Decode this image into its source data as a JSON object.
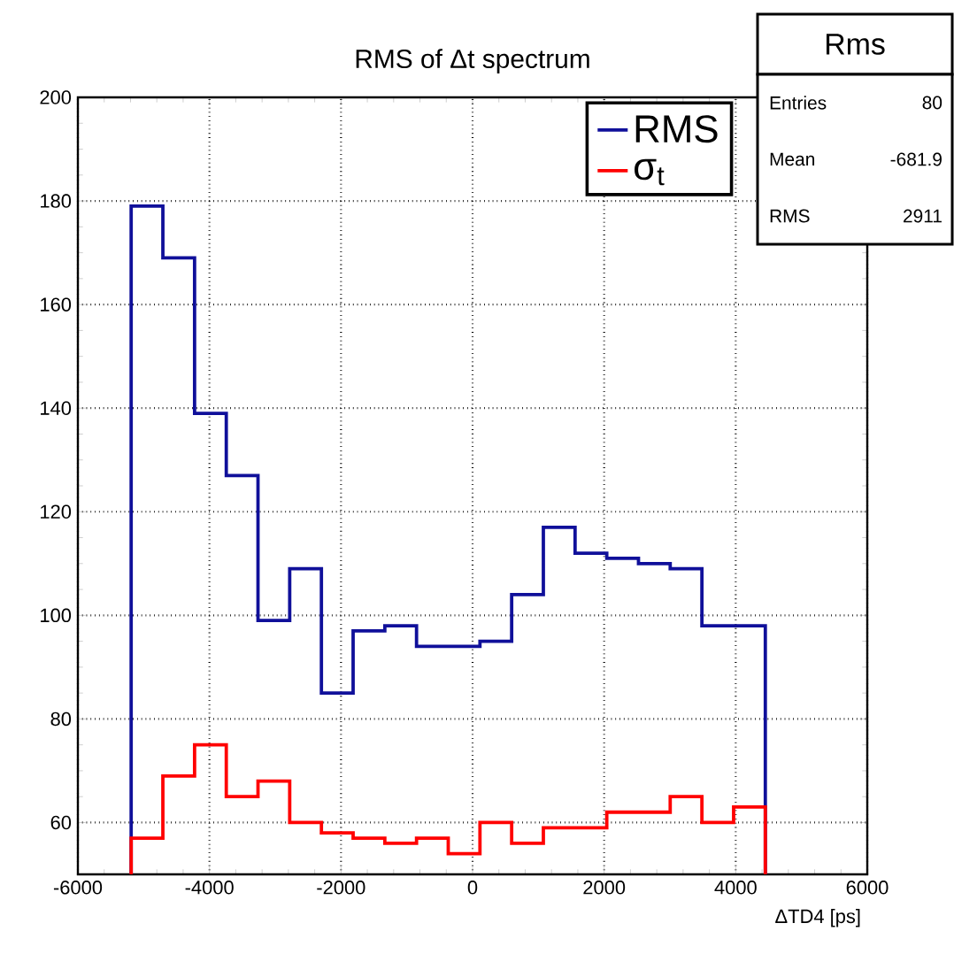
{
  "chart_data": {
    "type": "histogram",
    "title": "RMS of Δt spectrum",
    "xlabel": "ΔTD4 [ps]",
    "bins": [
      -5190,
      -4708,
      -4226,
      -3744,
      -3262,
      -2780,
      -2298,
      -1816,
      -1334,
      -852,
      -370,
      112,
      594,
      1076,
      1558,
      2040,
      2522,
      3004,
      3486,
      3968,
      4450
    ],
    "series": [
      {
        "name": "RMS",
        "color": "#10109a",
        "values": [
          179,
          169,
          139,
          127,
          99,
          109,
          85,
          97,
          98,
          94,
          94,
          95,
          104,
          117,
          112,
          111,
          110,
          109,
          98,
          98
        ]
      },
      {
        "name": "σ$_{t}$",
        "color": "#ff0000",
        "values": [
          57,
          69,
          75,
          65,
          68,
          60,
          58,
          57,
          56,
          57,
          54,
          60,
          56,
          59,
          59,
          62,
          62,
          65,
          60,
          63
        ]
      }
    ],
    "xlim": [
      -6000,
      6000
    ],
    "ylim": [
      50,
      200
    ],
    "xticks": [
      -6000,
      -4000,
      -2000,
      0,
      2000,
      4000,
      6000
    ],
    "yticks": [
      60,
      80,
      100,
      120,
      140,
      160,
      180,
      200
    ],
    "grid": true,
    "legend": "top right",
    "annotations": [
      "Rms",
      "Entries",
      "80",
      "Mean",
      "-681.9",
      "RMS",
      "2911"
    ]
  }
}
